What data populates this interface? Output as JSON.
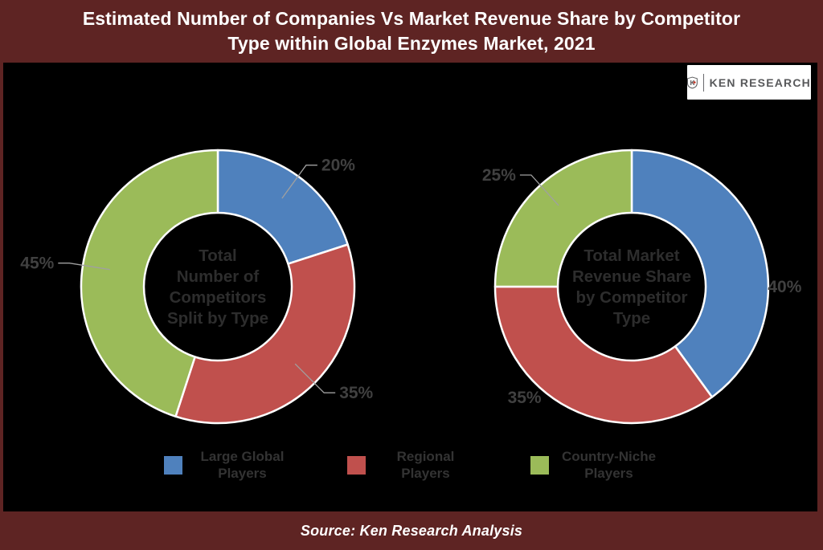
{
  "title_lines": [
    "Estimated Number of Companies Vs Market Revenue Share by Competitor",
    "Type within Global Enzymes Market, 2021"
  ],
  "logo": {
    "letter": "K",
    "text": "KEN RESEARCH"
  },
  "source": "Source: Ken Research Analysis",
  "legend": {
    "items": [
      {
        "label": "Large Global Players",
        "color": "#4F81BD"
      },
      {
        "label": "Regional Players",
        "color": "#C0504D"
      },
      {
        "label": "Country-Niche Players",
        "color": "#9BBB59"
      }
    ]
  },
  "chart_data": [
    {
      "type": "pie",
      "subtype": "donut",
      "title": "Total Number of Competitors Split by Type",
      "center_lines": [
        "Total",
        "Number of",
        "Competitors",
        "Split by Type"
      ],
      "categories": [
        "Large Global Players",
        "Regional Players",
        "Country-Niche Players"
      ],
      "values": [
        20,
        35,
        45
      ],
      "data_labels": [
        "20%",
        "35%",
        "45%"
      ],
      "colors": [
        "#4F81BD",
        "#C0504D",
        "#9BBB59"
      ],
      "start_angle_deg": 0,
      "direction": "clockwise",
      "legend_position": "bottom"
    },
    {
      "type": "pie",
      "subtype": "donut",
      "title": "Total Market Revenue Share by Competitor Type",
      "center_lines": [
        "Total Market",
        "Revenue Share",
        "by Competitor",
        "Type"
      ],
      "categories": [
        "Large Global Players",
        "Regional Players",
        "Country-Niche Players"
      ],
      "values": [
        40,
        35,
        25
      ],
      "data_labels": [
        "40%",
        "35%",
        "25%"
      ],
      "colors": [
        "#4F81BD",
        "#C0504D",
        "#9BBB59"
      ],
      "start_angle_deg": 0,
      "direction": "clockwise",
      "legend_position": "bottom"
    }
  ],
  "colors": {
    "frame": "#5E2423",
    "chart_background": "#000000",
    "title_text": "#FFFFFF",
    "data_label_text": "#404040",
    "center_text": "#2D2D2D",
    "legend_text": "#333333",
    "leader_line": "#A0A0A0",
    "slice_border": "#FFFFFF",
    "logo_text": "#58595B",
    "logo_accent": "#C0392B"
  }
}
